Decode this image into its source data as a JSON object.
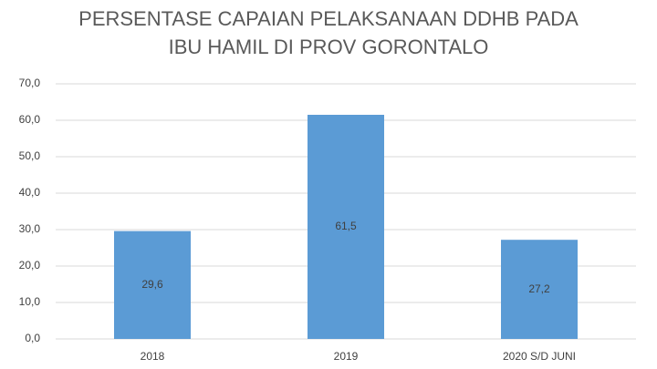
{
  "chart_data": {
    "type": "bar",
    "title": [
      "PERSENTASE CAPAIAN PELAKSANAAN DDHB PADA",
      "IBU HAMIL DI PROV GORONTALO"
    ],
    "categories": [
      "2018",
      "2019",
      "2020 S/D JUNI"
    ],
    "values": [
      29.6,
      61.5,
      27.2
    ],
    "value_labels": [
      "29,6",
      "61,5",
      "27,2"
    ],
    "color": "#5b9bd5",
    "ylim": [
      0,
      70
    ],
    "yticks": [
      {
        "value": 0,
        "label": "0,0"
      },
      {
        "value": 10,
        "label": "10,0"
      },
      {
        "value": 20,
        "label": "20,0"
      },
      {
        "value": 30,
        "label": "30,0"
      },
      {
        "value": 40,
        "label": "40,0"
      },
      {
        "value": 50,
        "label": "50,0"
      },
      {
        "value": 60,
        "label": "60,0"
      },
      {
        "value": 70,
        "label": "70,0"
      }
    ],
    "grid": true
  }
}
